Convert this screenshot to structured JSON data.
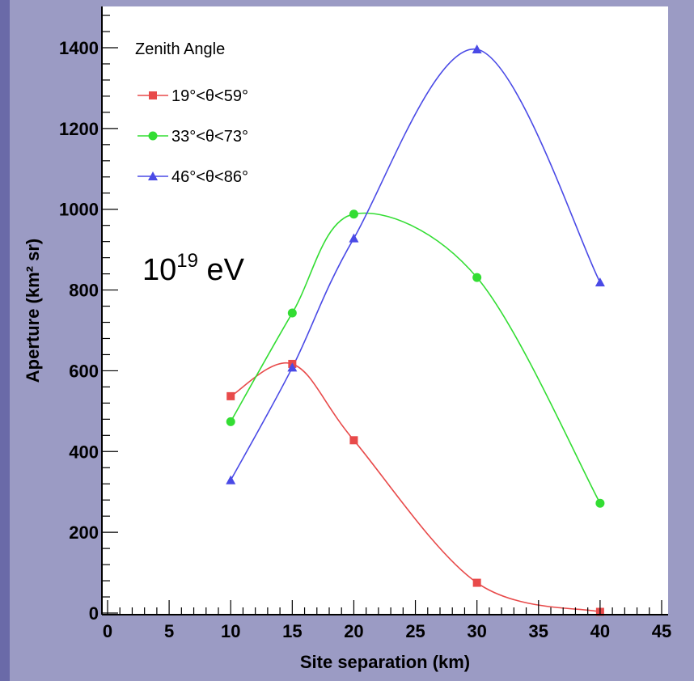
{
  "chart_data": {
    "type": "line",
    "xlabel": "Site separation (km)",
    "ylabel": "Aperture  (km² sr)",
    "xlim": [
      0,
      45
    ],
    "ylim": [
      0,
      1500
    ],
    "x_ticks": [
      "0",
      "5",
      "10",
      "15",
      "20",
      "25",
      "30",
      "35",
      "40",
      "45"
    ],
    "y_ticks": [
      "0",
      "200",
      "400",
      "600",
      "800",
      "1000",
      "1200",
      "1400"
    ],
    "legend_title": "Zenith Angle",
    "legend_position": "top-left",
    "annotation": {
      "base": "10",
      "exp": "19",
      "unit": " eV"
    },
    "series": [
      {
        "name": "19°<θ<59°",
        "color": "#e84a4a",
        "marker": "square",
        "x": [
          10,
          15,
          20,
          30,
          40
        ],
        "y": [
          537,
          617,
          428,
          75,
          3
        ]
      },
      {
        "name": "33°<θ<73°",
        "color": "#33dd33",
        "marker": "circle",
        "x": [
          10,
          15,
          20,
          30,
          40
        ],
        "y": [
          474,
          743,
          988,
          831,
          272
        ]
      },
      {
        "name": "46°<θ<86°",
        "color": "#4a4ae6",
        "marker": "triangle",
        "x": [
          10,
          15,
          20,
          30,
          40
        ],
        "y": [
          329,
          608,
          928,
          1396,
          819
        ]
      }
    ]
  }
}
